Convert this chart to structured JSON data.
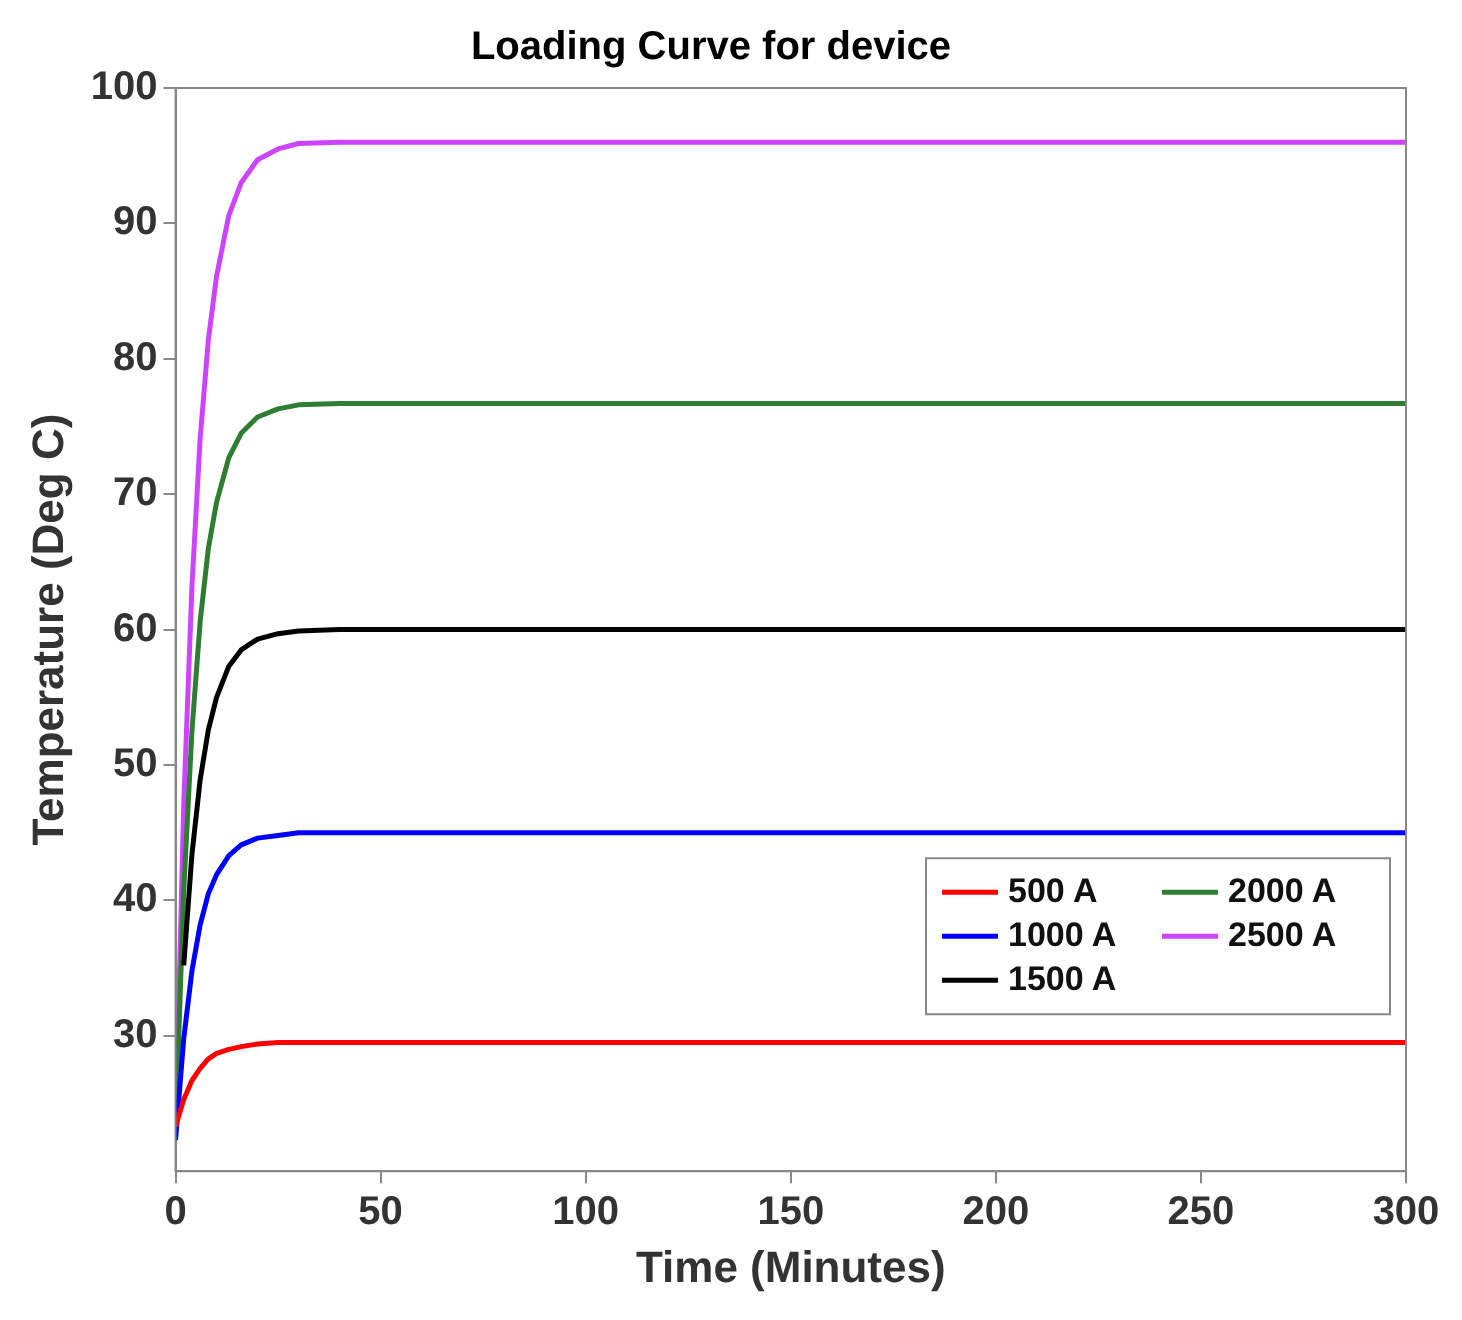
{
  "chart_data": {
    "type": "line",
    "title": "Loading Curve for device",
    "xlabel": "Time (Minutes)",
    "ylabel": "Temperature (Deg C)",
    "x": [
      0,
      2,
      4,
      6,
      8,
      10,
      13,
      16,
      20,
      25,
      30,
      40,
      60,
      100,
      150,
      200,
      250,
      300
    ],
    "xlim": [
      0,
      300
    ],
    "xticks": [
      0,
      50,
      100,
      150,
      200,
      250,
      300
    ],
    "ylim": [
      20,
      100
    ],
    "yticks": [
      30,
      40,
      50,
      60,
      70,
      80,
      90,
      100
    ],
    "grid": false,
    "legend": "bottom right",
    "marker": "none",
    "line_style": "solid",
    "series": [
      {
        "name": "500 A",
        "color": "#ff0000",
        "values": [
          23.3,
          25.3,
          26.7,
          27.6,
          28.3,
          28.7,
          29.0,
          29.2,
          29.4,
          29.5,
          29.5,
          29.5,
          29.5,
          29.5,
          29.5,
          29.5,
          29.5,
          29.5
        ]
      },
      {
        "name": "1000 A",
        "color": "#0000ff",
        "values": [
          22.3,
          29.8,
          34.8,
          38.2,
          40.5,
          41.9,
          43.3,
          44.1,
          44.6,
          44.8,
          45.0,
          45.0,
          45.0,
          45.0,
          45.0,
          45.0,
          45.0,
          45.0
        ]
      },
      {
        "name": "1500 A",
        "color": "#000000",
        "values": [
          null,
          35.2,
          43.4,
          48.9,
          52.6,
          55.0,
          57.3,
          58.5,
          59.3,
          59.7,
          59.9,
          60.0,
          60.0,
          60.0,
          60.0,
          60.0,
          60.0,
          60.0
        ]
      },
      {
        "name": "2000 A",
        "color": "#2e7d32",
        "values": [
          23.0,
          40.7,
          52.5,
          60.6,
          66.0,
          69.4,
          72.7,
          74.5,
          75.7,
          76.3,
          76.6,
          76.7,
          76.7,
          76.7,
          76.7,
          76.7,
          76.7,
          76.7
        ]
      },
      {
        "name": "2500 A",
        "color": "#cc44ff",
        "values": [
          23.0,
          47.1,
          63.2,
          74.1,
          81.4,
          86.1,
          90.6,
          93.0,
          94.7,
          95.5,
          95.9,
          96.0,
          96.0,
          96.0,
          96.0,
          96.0,
          96.0,
          96.0
        ]
      }
    ]
  }
}
